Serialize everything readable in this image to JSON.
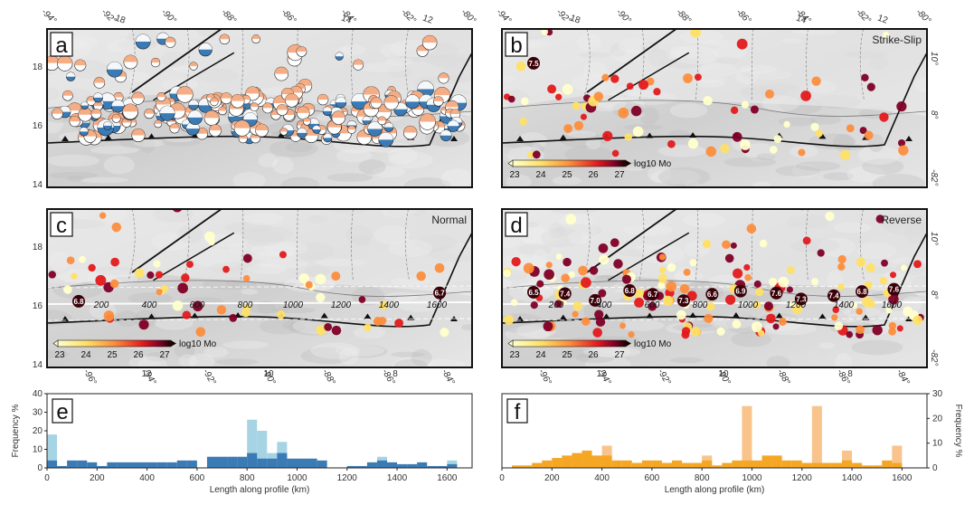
{
  "panels": {
    "a": {
      "label": "a",
      "title": ""
    },
    "b": {
      "label": "b",
      "title": "Strike-Slip"
    },
    "c": {
      "label": "c",
      "title": "Normal"
    },
    "d": {
      "label": "d",
      "title": "Reverse"
    },
    "e": {
      "label": "e"
    },
    "f": {
      "label": "f"
    }
  },
  "map_ticks": {
    "top_lon": [
      "-94°",
      "-92°",
      "-90°",
      "-88°",
      "-86°",
      "-84°",
      "-82°",
      "-80°"
    ],
    "top_extra": [
      "18",
      "14",
      "12"
    ],
    "left_lat_ab": [
      "18°",
      "16°",
      "14°"
    ],
    "left_lat_cd": [
      "18°",
      "16°",
      "14°"
    ],
    "bottom_lon": [
      "-96°",
      "-94°",
      "-92°",
      "-90°",
      "-88°",
      "-86°",
      "-84°"
    ],
    "bottom_extra": [
      "12",
      "10",
      "8"
    ],
    "right_lat": [
      "10°",
      "8°",
      "-82°"
    ]
  },
  "profile_marks": [
    "200",
    "400",
    "600",
    "800",
    "1000",
    "1200",
    "1400",
    "1600"
  ],
  "colorbar": {
    "ticks": [
      "23",
      "24",
      "25",
      "26",
      "27"
    ],
    "unit": "log10 Mo",
    "colors": [
      "#ffffcc",
      "#ffe066",
      "#fd8d3c",
      "#e31a1c",
      "#800026",
      "#1a0000"
    ]
  },
  "magnitudes_b": [
    "7.5"
  ],
  "magnitudes_c": [
    "6.8",
    "6.7"
  ],
  "magnitudes_d": [
    "6.5",
    "7.4",
    "7.0",
    "6.8",
    "6.7",
    "7.3",
    "6.6",
    "6.9",
    "7.6",
    "7.3",
    "7.4",
    "6.8",
    "7.6"
  ],
  "colors": {
    "blue": "#3a7ab5",
    "light_blue": "#a7d4e4",
    "orange": "#f5a623",
    "light_orange": "#f9c48c"
  },
  "chart_data": [
    {
      "type": "bar",
      "panel": "e",
      "xlabel": "Length along profile (km)",
      "ylabel": "Frequency %",
      "xlim": [
        0,
        1700
      ],
      "ylim": [
        0,
        40
      ],
      "yticks": [
        "0",
        "10",
        "20",
        "30",
        "40"
      ],
      "xticks": [
        "0",
        "200",
        "400",
        "600",
        "800",
        "1000",
        "1200",
        "1400",
        "1600"
      ],
      "bin_width": 40,
      "x": [
        20,
        60,
        100,
        140,
        180,
        220,
        260,
        300,
        340,
        380,
        420,
        460,
        500,
        540,
        580,
        620,
        660,
        700,
        740,
        780,
        820,
        860,
        900,
        940,
        980,
        1020,
        1060,
        1100,
        1140,
        1180,
        1220,
        1260,
        1300,
        1340,
        1380,
        1420,
        1460,
        1500,
        1540,
        1580,
        1620,
        1660
      ],
      "series": [
        {
          "values": [
            4,
            1,
            4,
            4,
            3,
            1,
            3,
            3,
            3,
            3,
            3,
            3,
            3,
            4,
            4,
            0,
            6,
            6,
            6,
            6,
            8,
            5,
            5,
            8,
            5,
            5,
            5,
            4,
            0,
            0,
            1,
            1,
            3,
            4,
            3,
            2,
            2,
            3,
            1,
            1,
            2,
            0
          ]
        },
        {
          "values": [
            18,
            0,
            0,
            0,
            0,
            0,
            0,
            0,
            0,
            0,
            0,
            0,
            0,
            0,
            0,
            0,
            0,
            0,
            0,
            0,
            26,
            20,
            8,
            14,
            0,
            0,
            0,
            0,
            0,
            0,
            0,
            0,
            0,
            6,
            0,
            0,
            0,
            0,
            0,
            0,
            4,
            0
          ]
        }
      ]
    },
    {
      "type": "bar",
      "panel": "f",
      "xlabel": "Length along profile (km)",
      "ylabel": "Frequency %",
      "xlim": [
        0,
        1700
      ],
      "ylim": [
        0,
        30
      ],
      "yticks": [
        "0",
        "10",
        "20",
        "30"
      ],
      "xticks": [
        "0",
        "200",
        "400",
        "600",
        "800",
        "1000",
        "1200",
        "1400",
        "1600"
      ],
      "bin_width": 40,
      "x": [
        20,
        60,
        100,
        140,
        180,
        220,
        260,
        300,
        340,
        380,
        420,
        460,
        500,
        540,
        580,
        620,
        660,
        700,
        740,
        780,
        820,
        860,
        900,
        940,
        980,
        1020,
        1060,
        1100,
        1140,
        1180,
        1220,
        1260,
        1300,
        1340,
        1380,
        1420,
        1460,
        1500,
        1540,
        1580,
        1620,
        1660
      ],
      "series": [
        {
          "values": [
            0,
            1,
            1,
            2,
            3,
            4,
            5,
            6,
            7,
            5,
            5,
            3,
            3,
            2,
            3,
            3,
            2,
            3,
            2,
            2,
            3,
            1,
            2,
            3,
            3,
            3,
            5,
            5,
            3,
            3,
            2,
            2,
            2,
            2,
            3,
            2,
            1,
            1,
            3,
            2,
            0,
            0
          ]
        },
        {
          "values": [
            0,
            0,
            0,
            0,
            0,
            0,
            0,
            0,
            0,
            0,
            9,
            0,
            0,
            0,
            0,
            0,
            0,
            0,
            0,
            0,
            5,
            0,
            0,
            0,
            25,
            0,
            0,
            0,
            0,
            0,
            0,
            25,
            0,
            0,
            7,
            0,
            0,
            0,
            0,
            9,
            0,
            0
          ]
        }
      ]
    }
  ]
}
